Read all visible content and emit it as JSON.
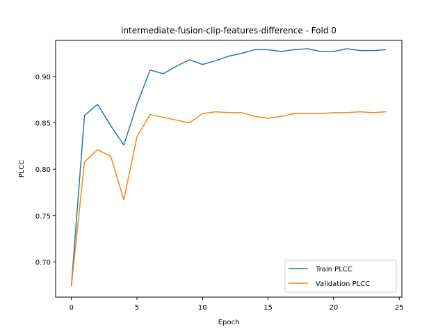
{
  "chart_data": {
    "type": "line",
    "title": "intermediate-fusion-clip-features-difference - Fold 0",
    "xlabel": "Epoch",
    "ylabel": "PLCC",
    "xlim": [
      -1.2,
      25.2
    ],
    "ylim": [
      0.662,
      0.939
    ],
    "xticks": [
      0,
      5,
      10,
      15,
      20,
      25
    ],
    "yticks": [
      0.7,
      0.75,
      0.8,
      0.85,
      0.9
    ],
    "ytick_labels": [
      "0.70",
      "0.75",
      "0.80",
      "0.85",
      "0.90"
    ],
    "grid": false,
    "legend_position": "lower-right",
    "x": [
      0,
      1,
      2,
      3,
      4,
      5,
      6,
      7,
      8,
      9,
      10,
      11,
      12,
      13,
      14,
      15,
      16,
      17,
      18,
      19,
      20,
      21,
      22,
      23,
      24
    ],
    "series": [
      {
        "name": "Train PLCC",
        "color": "#1f77b4",
        "values": [
          0.674,
          0.858,
          0.87,
          0.847,
          0.826,
          0.87,
          0.907,
          0.903,
          0.911,
          0.918,
          0.913,
          0.917,
          0.922,
          0.925,
          0.929,
          0.929,
          0.927,
          0.929,
          0.93,
          0.927,
          0.927,
          0.93,
          0.928,
          0.928,
          0.929
        ]
      },
      {
        "name": "Validation PLCC",
        "color": "#ff7f0e",
        "values": [
          0.674,
          0.808,
          0.821,
          0.814,
          0.767,
          0.835,
          0.859,
          0.856,
          0.853,
          0.85,
          0.86,
          0.862,
          0.861,
          0.861,
          0.857,
          0.855,
          0.857,
          0.86,
          0.86,
          0.86,
          0.861,
          0.861,
          0.862,
          0.861,
          0.862
        ]
      }
    ]
  }
}
